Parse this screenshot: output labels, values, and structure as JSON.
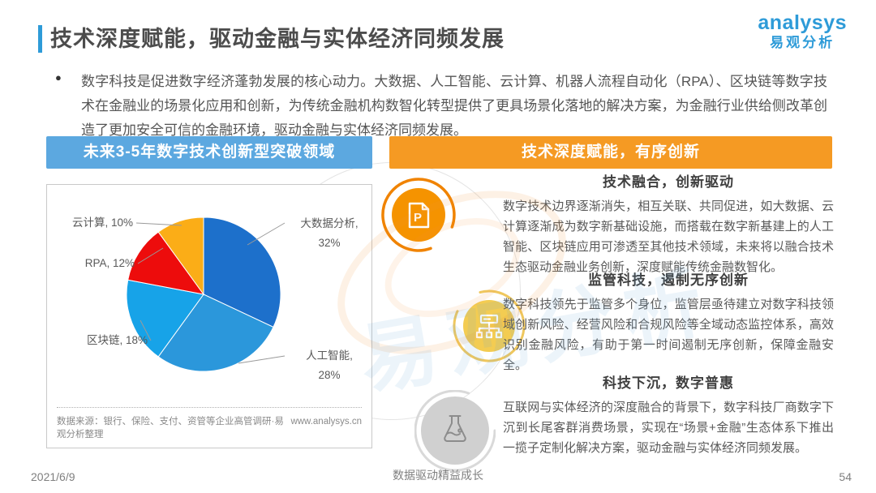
{
  "page": {
    "title": "技术深度赋能，驱动金融与实体经济同频发展",
    "footer": {
      "date": "2021/6/9",
      "slogan": "数据驱动精益成长",
      "page_number": "54"
    }
  },
  "logo": {
    "brand": "analysys",
    "brand_cn": "易观分析"
  },
  "intro": {
    "bullet": "●",
    "text": "数字科技是促进数字经济蓬勃发展的核心动力。大数据、人工智能、云计算、机器人流程自动化（RPA）、区块链等数字技术在金融业的场景化应用和创新，为传统金融机构数智化转型提供了更具场景化落地的解决方案，为金融行业供给侧改革创造了更加安全可信的金融环境，驱动金融与实体经济同频发展。"
  },
  "left_panel": {
    "header": "未来3-5年数字技术创新型突破领域",
    "header_color": "#5CA8E0",
    "source_note": "数据来源：银行、保险、支付、资管等企业高管调研·易观分析整理",
    "website": "www.analysys.cn"
  },
  "chart_data": {
    "type": "pie",
    "title": "未来3-5年数字技术创新型突破领域",
    "labels": [
      "大数据分析",
      "人工智能",
      "区块链",
      "RPA",
      "云计算"
    ],
    "values": [
      32,
      28,
      18,
      12,
      10
    ],
    "unit": "%",
    "colors": [
      "#1D70CB",
      "#2B97DB",
      "#17A3E8",
      "#ED0C0C",
      "#FBAD17"
    ],
    "start_angle_deg": 0,
    "direction": "clockwise",
    "legend": "leader-line labels around pie"
  },
  "right_panel": {
    "header": "技术深度赋能，有序创新",
    "header_color": "#F59A23",
    "sections": [
      {
        "icon": "document-p-icon",
        "title": "技术融合，创新驱动",
        "body": "数字技术边界逐渐消失，相互关联、共同促进，如大数据、云计算逐渐成为数字新基础设施，而搭载在数字新基建上的人工智能、区块链应用可渗透至其他技术领域，未来将以融合技术生态驱动金融业务创新，深度赋能传统金融数智化。"
      },
      {
        "icon": "flowchart-icon",
        "title": "监管科技，遏制无序创新",
        "body": "数字科技领先于监管多个身位，监管层亟待建立对数字科技领域创新风险、经营风险和合规风险等全域动态监控体系，高效识别金融风险，有助于第一时间遏制无序创新，保障金融安全。"
      },
      {
        "icon": "flask-icon",
        "title": "科技下沉，数字普惠",
        "body": "互联网与实体经济的深度融合的背景下，数字科技厂商数字下沉到长尾客群消费场景，实现在“场景+金融”生态体系下推出一揽子定制化解决方案，驱动金融与实体经济同频发展。"
      }
    ]
  },
  "watermark": {
    "text": "易观分析"
  }
}
